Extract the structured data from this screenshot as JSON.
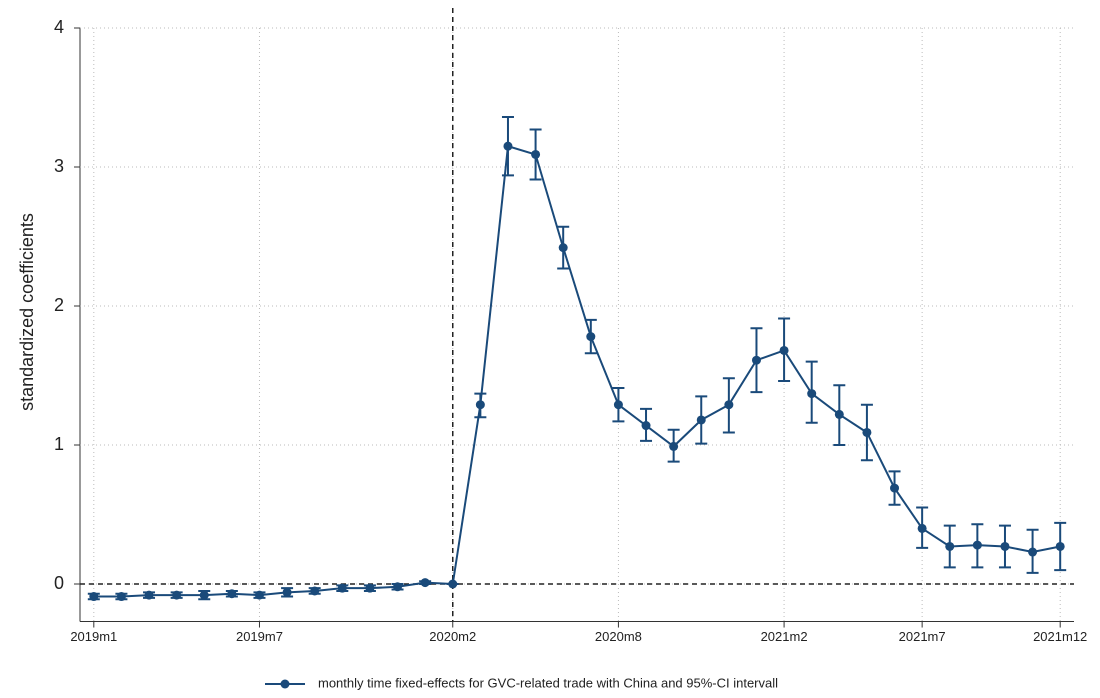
{
  "chart_data": {
    "type": "line",
    "ylabel": "standardized coefficients",
    "categories": [
      "2019m1",
      null,
      null,
      null,
      null,
      null,
      "2019m7",
      null,
      null,
      null,
      null,
      null,
      null,
      "2020m2",
      null,
      null,
      null,
      null,
      null,
      "2020m8",
      null,
      null,
      null,
      null,
      null,
      "2021m2",
      null,
      null,
      null,
      null,
      "2021m7",
      null,
      null,
      null,
      null,
      "2021m12"
    ],
    "series": [
      {
        "name": "monthly time fixed-effects for GVC-related trade with China and 95%-CI intervall",
        "color": "#1a4a7a",
        "values": [
          -0.09,
          -0.09,
          -0.08,
          -0.08,
          -0.08,
          -0.07,
          -0.08,
          -0.06,
          -0.05,
          -0.03,
          -0.03,
          -0.02,
          0.01,
          0,
          1.29,
          3.15,
          3.09,
          2.42,
          1.78,
          1.29,
          1.14,
          0.99,
          1.18,
          1.29,
          1.61,
          1.68,
          1.37,
          1.22,
          1.09,
          0.69,
          0.4,
          0.27,
          0.28,
          0.27,
          0.23,
          0.27
        ],
        "lower": [
          -0.11,
          -0.11,
          -0.1,
          -0.1,
          -0.11,
          -0.09,
          -0.1,
          -0.09,
          -0.07,
          -0.05,
          -0.05,
          -0.04,
          0,
          0,
          1.2,
          2.94,
          2.91,
          2.27,
          1.66,
          1.17,
          1.03,
          0.88,
          1.01,
          1.09,
          1.38,
          1.46,
          1.16,
          1.0,
          0.89,
          0.57,
          0.26,
          0.12,
          0.12,
          0.12,
          0.08,
          0.1
        ],
        "upper": [
          -0.07,
          -0.07,
          -0.06,
          -0.06,
          -0.05,
          -0.05,
          -0.06,
          -0.03,
          -0.03,
          -0.01,
          -0.01,
          0,
          0.02,
          0,
          1.37,
          3.36,
          3.27,
          2.57,
          1.9,
          1.41,
          1.26,
          1.11,
          1.35,
          1.48,
          1.84,
          1.91,
          1.6,
          1.43,
          1.29,
          0.81,
          0.55,
          0.42,
          0.43,
          0.42,
          0.39,
          0.44
        ]
      }
    ],
    "ylim": [
      -0.27,
      4
    ],
    "yticks": [
      0,
      1,
      2,
      3,
      4
    ],
    "reference_lines": {
      "x": 13,
      "y": 0
    },
    "grid": true
  }
}
